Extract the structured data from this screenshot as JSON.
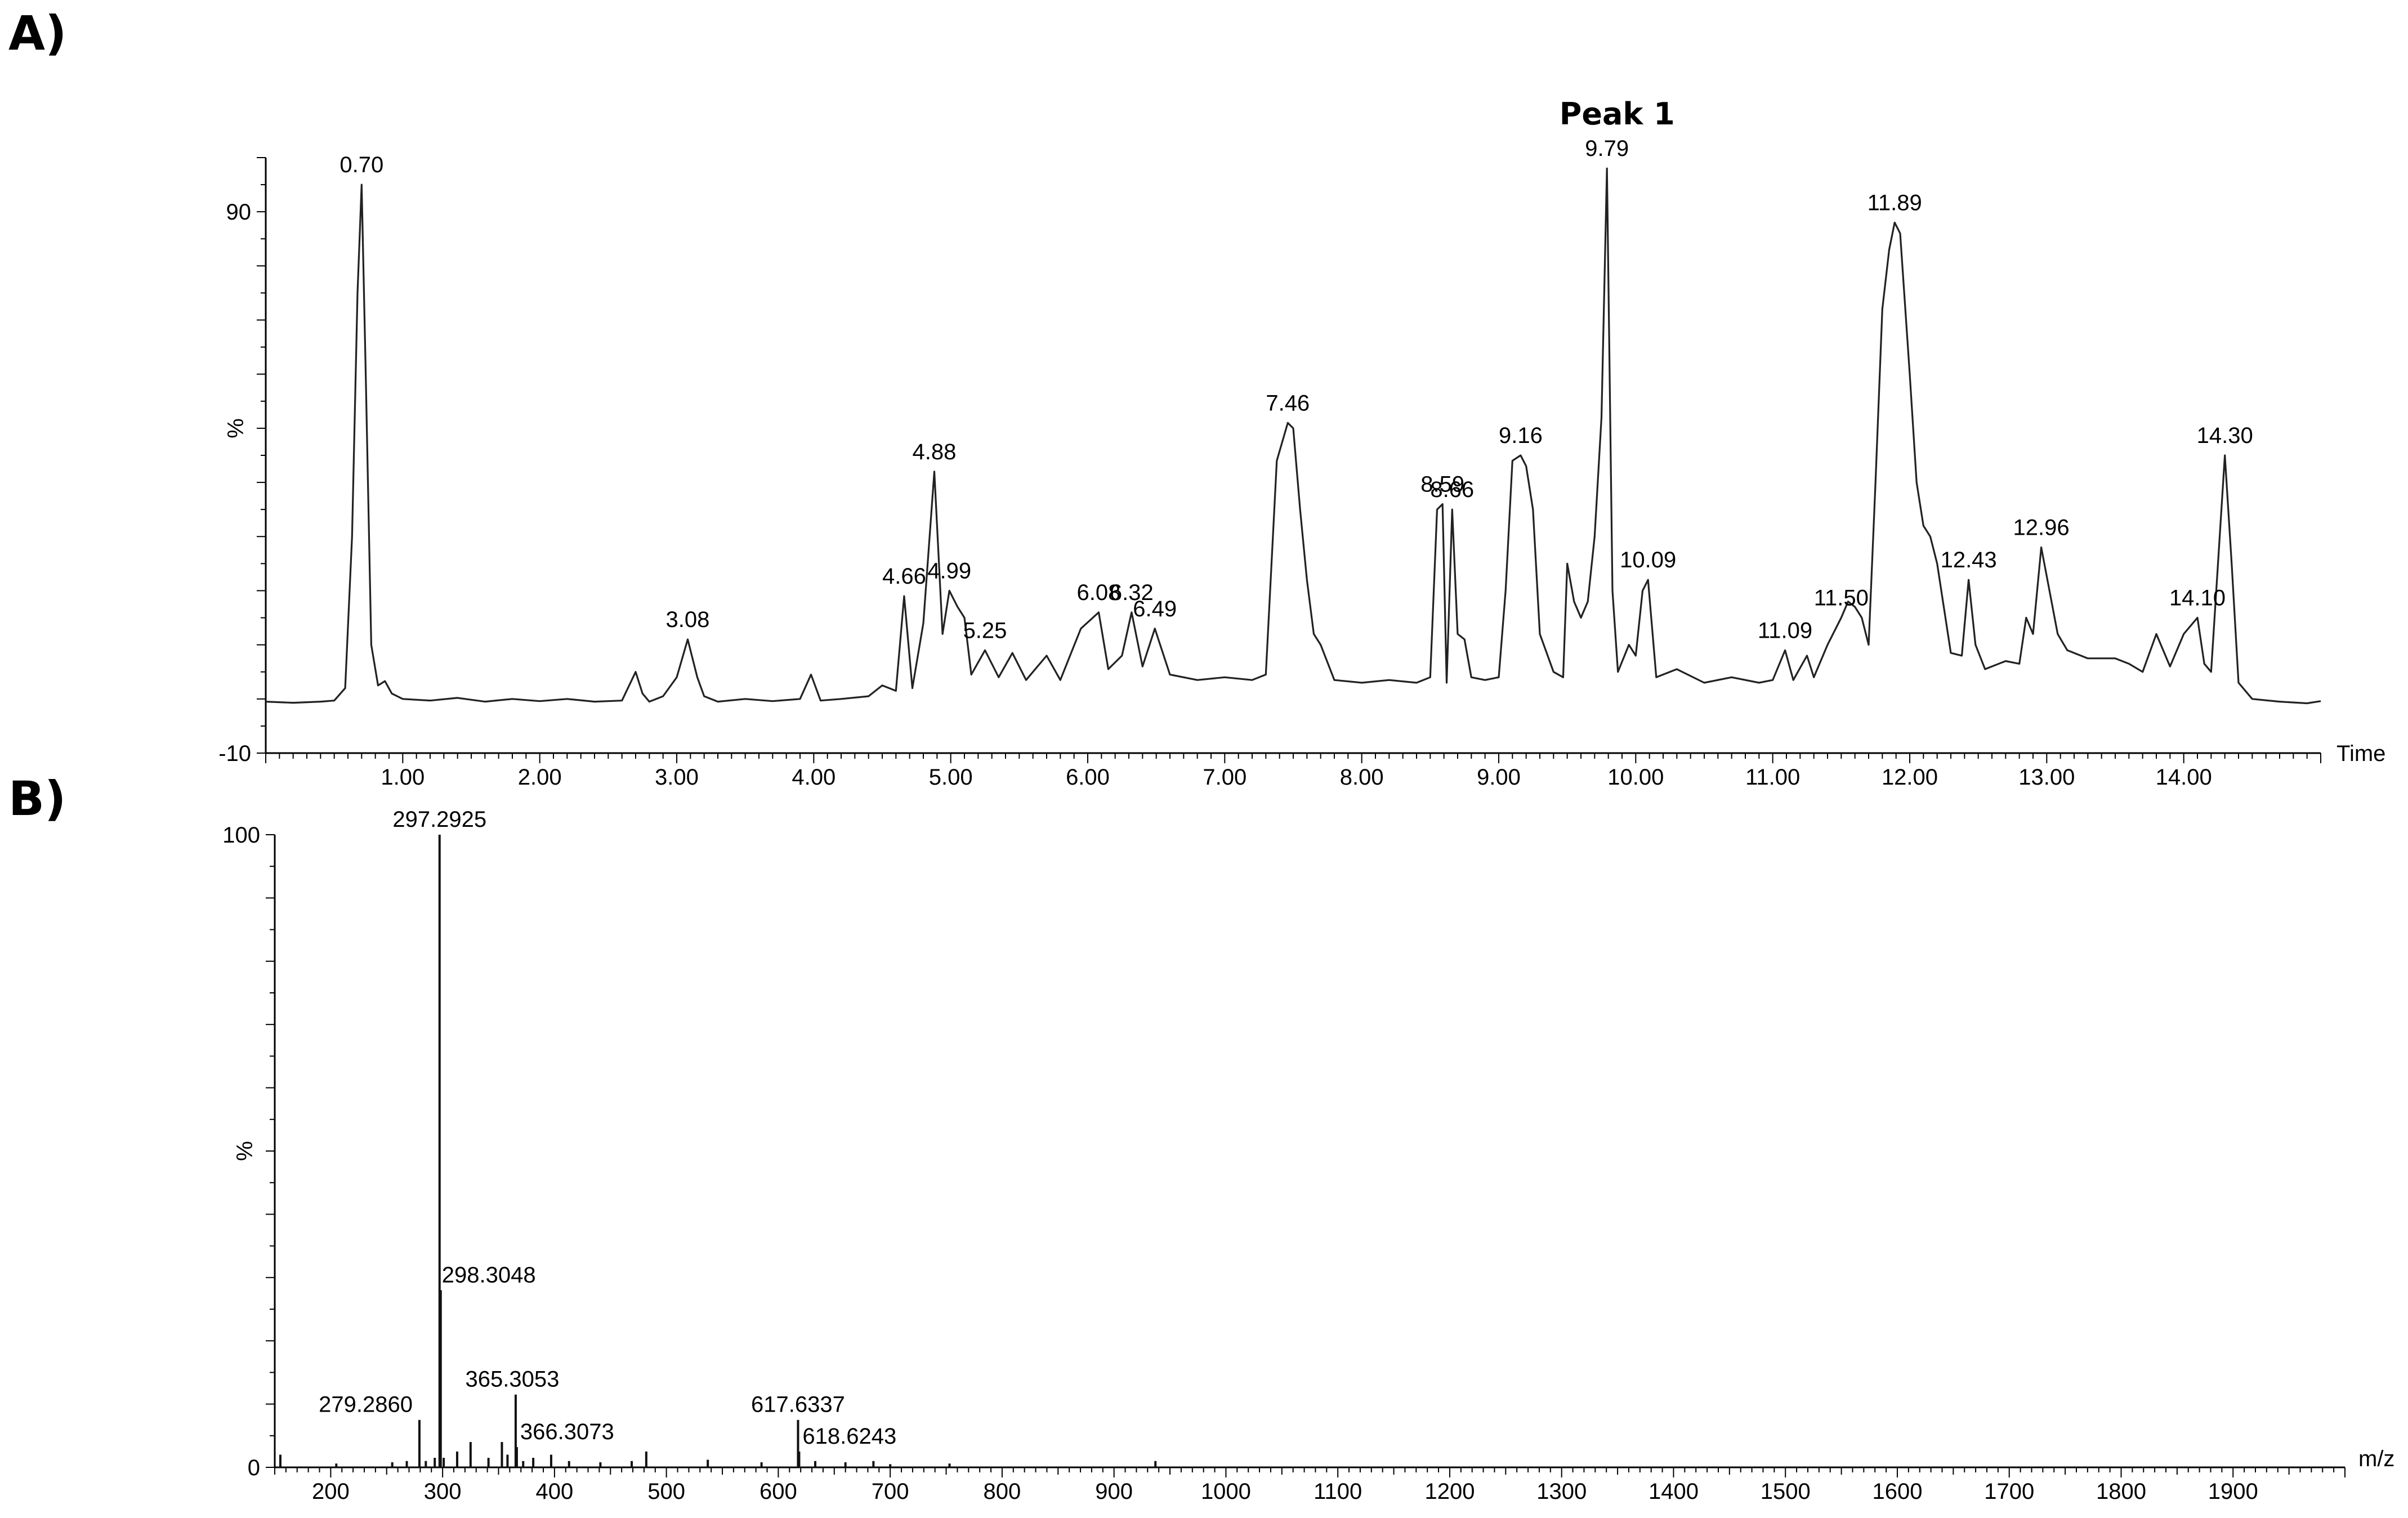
{
  "panels": {
    "a": {
      "label": "A)"
    },
    "b": {
      "label": "B)"
    }
  },
  "chart_data": [
    {
      "type": "line",
      "panel": "A)",
      "annotation": "Peak 1",
      "annotation_x": 9.79,
      "xlabel": "Time",
      "ylabel": "%",
      "xlim": [
        0.0,
        15.0
      ],
      "ylim": [
        -10,
        100
      ],
      "x_ticks": [
        1.0,
        2.0,
        3.0,
        4.0,
        5.0,
        6.0,
        7.0,
        8.0,
        9.0,
        10.0,
        11.0,
        12.0,
        13.0,
        14.0
      ],
      "x_tick_labels": [
        "1.00",
        "2.00",
        "3.00",
        "4.00",
        "5.00",
        "6.00",
        "7.00",
        "8.00",
        "9.00",
        "10.00",
        "11.00",
        "12.00",
        "13.00",
        "14.00"
      ],
      "y_ticks": [
        -10,
        90
      ],
      "y_tick_labels": [
        "-10",
        "90"
      ],
      "series": [
        {
          "x": [
            0.0,
            0.1,
            0.2,
            0.3,
            0.4,
            0.5,
            0.58,
            0.63,
            0.67,
            0.7,
            0.73,
            0.77,
            0.82,
            0.87,
            0.92,
            1.0,
            1.2,
            1.4,
            1.6,
            1.8,
            2.0,
            2.2,
            2.4,
            2.6,
            2.7,
            2.75,
            2.8,
            2.9,
            3.0,
            3.08,
            3.15,
            3.2,
            3.3,
            3.5,
            3.7,
            3.9,
            3.98,
            4.05,
            4.2,
            4.4,
            4.5,
            4.6,
            4.66,
            4.72,
            4.8,
            4.88,
            4.94,
            4.99,
            5.05,
            5.1,
            5.15,
            5.25,
            5.35,
            5.45,
            5.55,
            5.7,
            5.8,
            5.95,
            6.08,
            6.15,
            6.25,
            6.32,
            6.4,
            6.49,
            6.6,
            6.8,
            7.0,
            7.2,
            7.3,
            7.38,
            7.46,
            7.5,
            7.55,
            7.6,
            7.65,
            7.7,
            7.8,
            8.0,
            8.2,
            8.4,
            8.5,
            8.55,
            8.59,
            8.62,
            8.66,
            8.7,
            8.75,
            8.8,
            8.9,
            9.0,
            9.05,
            9.1,
            9.16,
            9.2,
            9.25,
            9.3,
            9.4,
            9.47,
            9.5,
            9.55,
            9.6,
            9.65,
            9.7,
            9.75,
            9.79,
            9.83,
            9.87,
            9.95,
            10.0,
            10.05,
            10.09,
            10.15,
            10.3,
            10.5,
            10.7,
            10.9,
            11.0,
            11.09,
            11.15,
            11.25,
            11.3,
            11.4,
            11.5,
            11.55,
            11.6,
            11.65,
            11.7,
            11.75,
            11.8,
            11.85,
            11.89,
            11.93,
            12.0,
            12.05,
            12.1,
            12.15,
            12.2,
            12.3,
            12.38,
            12.43,
            12.48,
            12.55,
            12.7,
            12.8,
            12.85,
            12.9,
            12.96,
            13.02,
            13.08,
            13.15,
            13.3,
            13.5,
            13.6,
            13.7,
            13.8,
            13.9,
            14.0,
            14.1,
            14.15,
            14.2,
            14.25,
            14.3,
            14.35,
            14.4,
            14.5,
            14.7,
            14.9,
            15.0
          ],
          "y": [
            -0.5,
            -0.6,
            -0.7,
            -0.6,
            -0.5,
            -0.3,
            2.0,
            30.0,
            75.0,
            95.0,
            60.0,
            10.0,
            2.5,
            3.3,
            1.0,
            0.0,
            -0.3,
            0.2,
            -0.5,
            0.0,
            -0.4,
            0.0,
            -0.5,
            -0.3,
            5.0,
            1.0,
            -0.5,
            0.5,
            4.0,
            11.0,
            4.0,
            0.5,
            -0.5,
            0.0,
            -0.4,
            0.0,
            4.5,
            -0.3,
            0.0,
            0.5,
            2.5,
            1.5,
            19.0,
            2.0,
            14.0,
            42.0,
            12.0,
            20.0,
            17.0,
            15.0,
            4.5,
            9.0,
            4.0,
            8.5,
            3.5,
            8.0,
            3.5,
            13.0,
            16.0,
            5.5,
            8.0,
            16.0,
            6.0,
            13.0,
            4.5,
            3.5,
            4.0,
            3.5,
            4.5,
            44.0,
            51.0,
            50.0,
            35.0,
            22.0,
            12.0,
            10.0,
            3.5,
            3.0,
            3.5,
            3.0,
            4.0,
            35.0,
            36.0,
            3.0,
            35.0,
            12.0,
            11.0,
            4.0,
            3.5,
            4.0,
            20.0,
            44.0,
            45.0,
            43.0,
            35.0,
            12.0,
            5.0,
            4.0,
            25.0,
            18.0,
            15.0,
            18.0,
            30.0,
            52.0,
            98.0,
            20.0,
            5.0,
            10.0,
            8.0,
            20.0,
            22.0,
            4.0,
            5.5,
            3.0,
            4.0,
            3.0,
            3.5,
            9.0,
            3.5,
            8.0,
            4.0,
            10.0,
            15.0,
            18.0,
            17.0,
            15.0,
            10.0,
            40.0,
            72.0,
            83.0,
            88.0,
            86.0,
            60.0,
            40.0,
            32.0,
            30.0,
            25.0,
            8.5,
            8.0,
            22.0,
            10.0,
            5.5,
            7.0,
            6.5,
            15.0,
            12.0,
            28.0,
            20.0,
            12.0,
            9.0,
            7.5,
            7.5,
            6.5,
            5.0,
            12.0,
            6.0,
            12.0,
            15.0,
            6.5,
            5.0,
            25.0,
            45.0,
            25.0,
            3.0,
            0.0,
            -0.5,
            -0.8,
            -0.4
          ]
        }
      ],
      "point_labels": [
        {
          "x": 0.7,
          "text": "0.70"
        },
        {
          "x": 3.08,
          "text": "3.08"
        },
        {
          "x": 4.66,
          "text": "4.66"
        },
        {
          "x": 4.88,
          "text": "4.88"
        },
        {
          "x": 4.99,
          "text": "4.99"
        },
        {
          "x": 5.25,
          "text": "5.25"
        },
        {
          "x": 6.08,
          "text": "6.08"
        },
        {
          "x": 6.32,
          "text": "6.32"
        },
        {
          "x": 6.49,
          "text": "6.49"
        },
        {
          "x": 7.46,
          "text": "7.46"
        },
        {
          "x": 8.59,
          "text": "8.59"
        },
        {
          "x": 8.66,
          "text": "8.66"
        },
        {
          "x": 9.16,
          "text": "9.16"
        },
        {
          "x": 9.79,
          "text": "9.79"
        },
        {
          "x": 10.09,
          "text": "10.09"
        },
        {
          "x": 11.09,
          "text": "11.09"
        },
        {
          "x": 11.5,
          "text": "11.50"
        },
        {
          "x": 11.89,
          "text": "11.89"
        },
        {
          "x": 12.43,
          "text": "12.43"
        },
        {
          "x": 12.96,
          "text": "12.96"
        },
        {
          "x": 14.1,
          "text": "14.10"
        },
        {
          "x": 14.3,
          "text": "14.30"
        }
      ]
    },
    {
      "type": "bar",
      "panel": "B)",
      "xlabel": "m/z",
      "ylabel": "%",
      "xlim": [
        150,
        2000
      ],
      "ylim": [
        0,
        100
      ],
      "x_ticks": [
        200,
        300,
        400,
        500,
        600,
        700,
        800,
        900,
        1000,
        1100,
        1200,
        1300,
        1400,
        1500,
        1600,
        1700,
        1800,
        1900
      ],
      "x_tick_labels": [
        "200",
        "300",
        "400",
        "500",
        "600",
        "700",
        "800",
        "900",
        "1000",
        "1100",
        "1200",
        "1300",
        "1400",
        "1500",
        "1600",
        "1700",
        "1800",
        "1900"
      ],
      "y_ticks": [
        0,
        100
      ],
      "y_tick_labels": [
        "0",
        "100"
      ],
      "peaks": [
        {
          "mz": 155.0,
          "intensity": 2.0
        },
        {
          "mz": 205.0,
          "intensity": 0.6
        },
        {
          "mz": 255.0,
          "intensity": 0.8
        },
        {
          "mz": 268.0,
          "intensity": 1.0
        },
        {
          "mz": 279.286,
          "intensity": 7.5
        },
        {
          "mz": 285.0,
          "intensity": 1.0
        },
        {
          "mz": 293.0,
          "intensity": 1.5
        },
        {
          "mz": 297.2925,
          "intensity": 100.0
        },
        {
          "mz": 298.3048,
          "intensity": 28.0
        },
        {
          "mz": 301.0,
          "intensity": 1.5
        },
        {
          "mz": 313.0,
          "intensity": 2.5
        },
        {
          "mz": 325.0,
          "intensity": 4.0
        },
        {
          "mz": 341.0,
          "intensity": 1.5
        },
        {
          "mz": 353.0,
          "intensity": 4.0
        },
        {
          "mz": 358.0,
          "intensity": 2.0
        },
        {
          "mz": 365.3053,
          "intensity": 11.5
        },
        {
          "mz": 366.3073,
          "intensity": 3.2
        },
        {
          "mz": 372.0,
          "intensity": 1.0
        },
        {
          "mz": 381.0,
          "intensity": 1.5
        },
        {
          "mz": 397.0,
          "intensity": 2.0
        },
        {
          "mz": 413.0,
          "intensity": 1.0
        },
        {
          "mz": 441.0,
          "intensity": 0.8
        },
        {
          "mz": 469.0,
          "intensity": 1.0
        },
        {
          "mz": 482.0,
          "intensity": 2.5
        },
        {
          "mz": 537.0,
          "intensity": 1.2
        },
        {
          "mz": 585.0,
          "intensity": 0.8
        },
        {
          "mz": 617.6337,
          "intensity": 7.5
        },
        {
          "mz": 618.6243,
          "intensity": 2.5
        },
        {
          "mz": 633.0,
          "intensity": 1.0
        },
        {
          "mz": 660.0,
          "intensity": 0.8
        },
        {
          "mz": 685.0,
          "intensity": 1.0
        },
        {
          "mz": 700.0,
          "intensity": 0.5
        },
        {
          "mz": 753.0,
          "intensity": 0.6
        },
        {
          "mz": 937.0,
          "intensity": 1.0
        }
      ],
      "point_labels": [
        {
          "mz": 297.2925,
          "text": "297.2925"
        },
        {
          "mz": 298.3048,
          "text": "298.3048"
        },
        {
          "mz": 279.286,
          "text": "279.2860"
        },
        {
          "mz": 365.3053,
          "text": "365.3053"
        },
        {
          "mz": 366.3073,
          "text": "366.3073"
        },
        {
          "mz": 617.6337,
          "text": "617.6337"
        },
        {
          "mz": 618.6243,
          "text": "618.6243"
        }
      ]
    }
  ]
}
